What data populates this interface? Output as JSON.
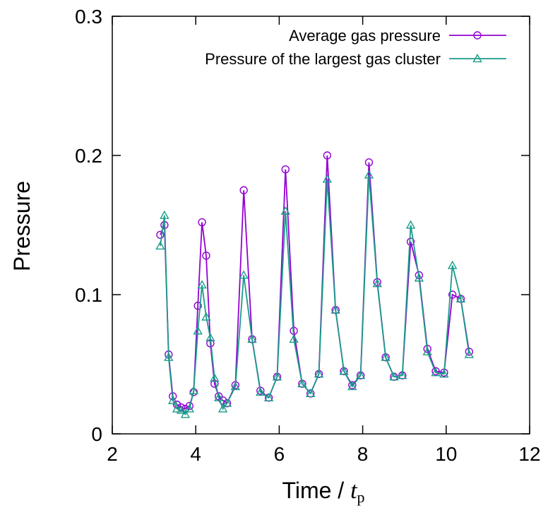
{
  "chart_data": {
    "type": "line",
    "xlabel": "Time / ",
    "xlabel_var": "t",
    "xlabel_sub": "p",
    "ylabel": "Pressure",
    "xlim": [
      2,
      12
    ],
    "ylim": [
      0,
      0.3
    ],
    "xticks": [
      "2",
      "4",
      "6",
      "8",
      "10",
      "12"
    ],
    "yticks": [
      "0",
      "0.1",
      "0.2",
      "0.3"
    ],
    "legend_position": "top-right",
    "grid": false,
    "series": [
      {
        "name": "Average gas pressure",
        "color": "#9400d3",
        "marker": "circle",
        "x": [
          3.15,
          3.25,
          3.35,
          3.45,
          3.55,
          3.65,
          3.75,
          3.85,
          3.95,
          4.05,
          4.15,
          4.25,
          4.35,
          4.45,
          4.55,
          4.65,
          4.75,
          4.95,
          5.15,
          5.35,
          5.55,
          5.75,
          5.95,
          6.15,
          6.35,
          6.55,
          6.75,
          6.95,
          7.15,
          7.35,
          7.55,
          7.75,
          7.95,
          8.15,
          8.35,
          8.55,
          8.75,
          8.95,
          9.15,
          9.35,
          9.55,
          9.75,
          9.95,
          10.15,
          10.35,
          10.55
        ],
        "y": [
          0.143,
          0.15,
          0.057,
          0.027,
          0.021,
          0.019,
          0.018,
          0.02,
          0.03,
          0.092,
          0.152,
          0.128,
          0.065,
          0.036,
          0.027,
          0.024,
          0.022,
          0.035,
          0.175,
          0.068,
          0.031,
          0.026,
          0.041,
          0.19,
          0.074,
          0.036,
          0.029,
          0.043,
          0.2,
          0.089,
          0.045,
          0.035,
          0.042,
          0.195,
          0.109,
          0.055,
          0.041,
          0.042,
          0.138,
          0.114,
          0.061,
          0.045,
          0.044,
          0.1,
          0.097,
          0.059
        ]
      },
      {
        "name": "Pressure of the largest gas cluster",
        "color": "#1a9c8a",
        "marker": "triangle",
        "x": [
          3.15,
          3.25,
          3.35,
          3.45,
          3.55,
          3.65,
          3.75,
          3.85,
          3.95,
          4.05,
          4.15,
          4.25,
          4.35,
          4.45,
          4.55,
          4.65,
          4.75,
          4.95,
          5.15,
          5.35,
          5.55,
          5.75,
          5.95,
          6.15,
          6.35,
          6.55,
          6.75,
          6.95,
          7.15,
          7.35,
          7.55,
          7.75,
          7.95,
          8.15,
          8.35,
          8.55,
          8.75,
          8.95,
          9.15,
          9.35,
          9.55,
          9.75,
          9.95,
          10.15,
          10.35,
          10.55
        ],
        "y": [
          0.135,
          0.157,
          0.055,
          0.024,
          0.018,
          0.017,
          0.014,
          0.018,
          0.031,
          0.074,
          0.107,
          0.084,
          0.069,
          0.04,
          0.026,
          0.018,
          0.022,
          0.034,
          0.114,
          0.068,
          0.03,
          0.026,
          0.041,
          0.16,
          0.068,
          0.036,
          0.029,
          0.043,
          0.183,
          0.089,
          0.045,
          0.034,
          0.042,
          0.186,
          0.108,
          0.055,
          0.041,
          0.042,
          0.15,
          0.112,
          0.059,
          0.044,
          0.043,
          0.121,
          0.097,
          0.057
        ]
      }
    ]
  }
}
